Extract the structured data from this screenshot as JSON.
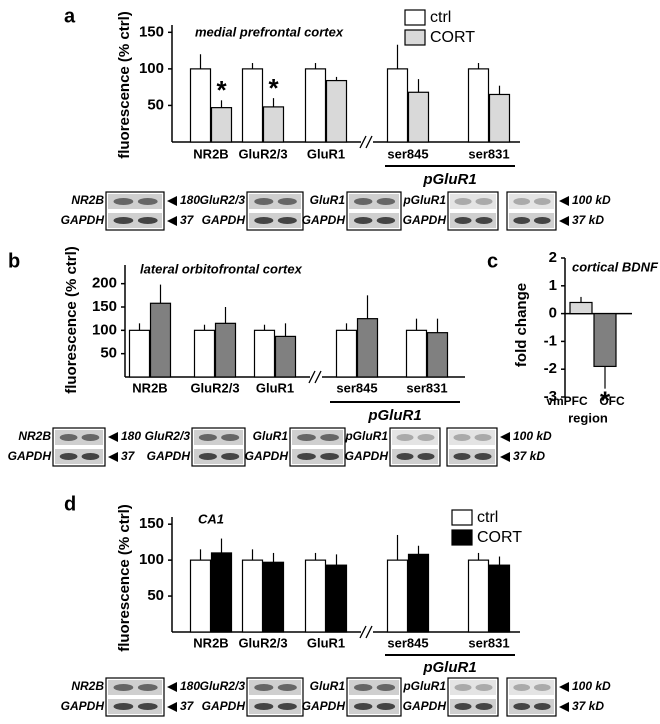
{
  "chart_data": [
    {
      "type": "bar",
      "panel": "a",
      "title": "medial prefrontal cortex",
      "ylabel": "fluorescence (% ctrl)",
      "categories": [
        "NR2B",
        "GluR2/3",
        "GluR1",
        "ser845",
        "ser831"
      ],
      "group_label": "pGluR1",
      "series": [
        {
          "name": "ctrl",
          "color": "#ffffff",
          "values": [
            100,
            100,
            100,
            100,
            100
          ],
          "errors": [
            20,
            8,
            8,
            33,
            8
          ],
          "annotations": [
            null,
            null,
            null,
            null,
            null
          ]
        },
        {
          "name": "CORT",
          "color": "#d9d9d9",
          "values": [
            47,
            48,
            84,
            68,
            65
          ],
          "errors": [
            10,
            12,
            5,
            18,
            12
          ],
          "annotations": [
            "*",
            "*",
            null,
            null,
            null
          ]
        }
      ],
      "ylim": [
        0,
        160
      ],
      "yticks": [
        50,
        100,
        150
      ],
      "legend": true,
      "blots": {
        "labels": [
          [
            "NR2B",
            "GAPDH"
          ],
          [
            "GluR2/3",
            "GAPDH"
          ],
          [
            "GluR1",
            "GAPDH"
          ],
          [
            "pGluR1",
            "GAPDH"
          ]
        ],
        "sizes": [
          [
            "180",
            "37"
          ],
          [
            "100 kD",
            "37 kD"
          ]
        ]
      }
    },
    {
      "type": "bar",
      "panel": "b",
      "title": "lateral orbitofrontal cortex",
      "ylabel": "fluorescence (% ctrl)",
      "categories": [
        "NR2B",
        "GluR2/3",
        "GluR1",
        "ser845",
        "ser831"
      ],
      "group_label": "pGluR1",
      "series": [
        {
          "name": "ctrl",
          "color": "#ffffff",
          "values": [
            100,
            100,
            100,
            100,
            100
          ],
          "errors": [
            15,
            12,
            12,
            15,
            25
          ],
          "annotations": [
            null,
            null,
            null,
            null,
            null
          ]
        },
        {
          "name": "CORT",
          "color": "#808080",
          "values": [
            158,
            115,
            87,
            125,
            95
          ],
          "errors": [
            40,
            35,
            28,
            50,
            30
          ],
          "annotations": [
            null,
            null,
            null,
            null,
            null
          ]
        }
      ],
      "ylim": [
        0,
        240
      ],
      "yticks": [
        50,
        100,
        150,
        200
      ],
      "legend": false,
      "blots": {
        "labels": [
          [
            "NR2B",
            "GAPDH"
          ],
          [
            "GluR2/3",
            "GAPDH"
          ],
          [
            "GluR1",
            "GAPDH"
          ],
          [
            "pGluR1",
            "GAPDH"
          ]
        ],
        "sizes": [
          [
            "180",
            "37"
          ],
          [
            "100 kD",
            "37 kD"
          ]
        ]
      }
    },
    {
      "type": "bar",
      "panel": "c",
      "title": "cortical BDNF",
      "ylabel": "fold change",
      "xlabel": "region",
      "categories": [
        "vmPFC",
        "OFC"
      ],
      "values": [
        0.4,
        -1.9
      ],
      "errors": [
        0.2,
        0.8
      ],
      "colors": [
        "#d9d9d9",
        "#808080"
      ],
      "annotations": [
        null,
        "*"
      ],
      "ylim": [
        -3,
        2
      ],
      "yticks": [
        -3,
        -2,
        -1,
        0,
        1,
        2
      ]
    },
    {
      "type": "bar",
      "panel": "d",
      "title": "CA1",
      "ylabel": "fluorescence (% ctrl)",
      "categories": [
        "NR2B",
        "GluR2/3",
        "GluR1",
        "ser845",
        "ser831"
      ],
      "group_label": "pGluR1",
      "series": [
        {
          "name": "ctrl",
          "color": "#ffffff",
          "values": [
            100,
            100,
            100,
            100,
            100
          ],
          "errors": [
            15,
            15,
            10,
            35,
            10
          ],
          "annotations": [
            null,
            null,
            null,
            null,
            null
          ]
        },
        {
          "name": "CORT",
          "color": "#000000",
          "values": [
            110,
            97,
            93,
            108,
            93
          ],
          "errors": [
            20,
            13,
            15,
            12,
            12
          ],
          "annotations": [
            null,
            null,
            null,
            null,
            null
          ]
        }
      ],
      "ylim": [
        0,
        160
      ],
      "yticks": [
        50,
        100,
        150
      ],
      "legend": true,
      "blots": {
        "labels": [
          [
            "NR2B",
            "GAPDH"
          ],
          [
            "GluR2/3",
            "GAPDH"
          ],
          [
            "GluR1",
            "GAPDH"
          ],
          [
            "pGluR1",
            "GAPDH"
          ]
        ],
        "sizes": [
          [
            "180",
            "37"
          ],
          [
            "100 kD",
            "37 kD"
          ]
        ]
      }
    }
  ]
}
